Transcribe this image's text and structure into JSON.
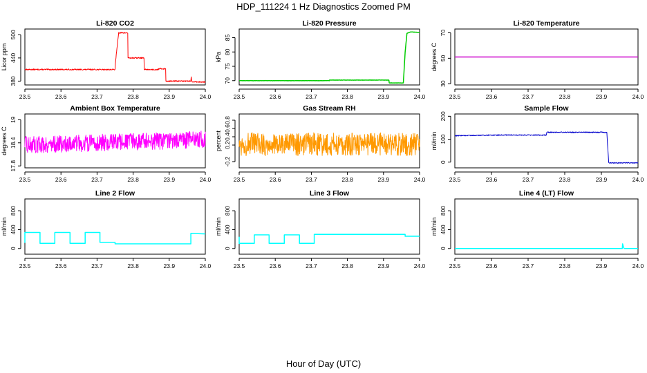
{
  "figure": {
    "title": "HDP_111224  1 Hz Diagnostics Zoomed PM",
    "xlabel": "Hour of Day (UTC)"
  },
  "chart_data": [
    {
      "type": "line",
      "title": "Li-820 CO2",
      "ylabel": "Licor ppm",
      "color": "#ff0000",
      "xlim": [
        23.5,
        24.0
      ],
      "x_ticks": [
        "23.5",
        "23.6",
        "23.7",
        "23.8",
        "23.9",
        "24.0"
      ],
      "ylim": [
        370,
        515
      ],
      "y_ticks": [
        380,
        440,
        500
      ],
      "noise": 1.5,
      "x": [
        23.5,
        23.75,
        23.751,
        23.76,
        23.76,
        23.785,
        23.785,
        23.83,
        23.83,
        23.87,
        23.87,
        23.89,
        23.89,
        23.96,
        23.96,
        23.962,
        23.962,
        24.0
      ],
      "values": [
        410,
        410,
        428,
        507,
        505,
        505,
        440,
        440,
        410,
        410,
        412,
        412,
        380,
        380,
        395,
        385,
        378,
        378
      ]
    },
    {
      "type": "line",
      "title": "Li-820 Pressure",
      "ylabel": "kPa",
      "color": "#00cc00",
      "xlim": [
        23.5,
        24.0
      ],
      "x_ticks": [
        "23.5",
        "23.6",
        "23.7",
        "23.8",
        "23.9",
        "24.0"
      ],
      "ylim": [
        68.5,
        88
      ],
      "y_ticks": [
        70,
        75,
        80,
        85
      ],
      "noise": 0.05,
      "x": [
        23.5,
        23.75,
        23.75,
        23.915,
        23.915,
        23.955,
        23.96,
        23.965,
        23.975,
        24.0
      ],
      "values": [
        70,
        70,
        70.2,
        70.2,
        69.2,
        69.2,
        80,
        86.5,
        87,
        86.8
      ]
    },
    {
      "type": "line",
      "title": "Li-820 Temperature",
      "ylabel": "degrees C",
      "color": "#cc00cc",
      "xlim": [
        23.5,
        24.0
      ],
      "x_ticks": [
        "23.5",
        "23.6",
        "23.7",
        "23.8",
        "23.9",
        "24.0"
      ],
      "ylim": [
        29,
        73
      ],
      "y_ticks": [
        30,
        50,
        70
      ],
      "noise": 0,
      "x": [
        23.5,
        24.0
      ],
      "values": [
        51,
        51
      ]
    },
    {
      "type": "line",
      "title": "Ambient Box Temperature",
      "ylabel": "degrees C",
      "color": "#ff00ff",
      "xlim": [
        23.5,
        24.0
      ],
      "x_ticks": [
        "23.5",
        "23.6",
        "23.7",
        "23.8",
        "23.9",
        "24.0"
      ],
      "ylim": [
        17.75,
        19.15
      ],
      "y_ticks": [
        17.8,
        18.4,
        19.0
      ],
      "noise": 0.22,
      "x": [
        23.5,
        23.7,
        23.9,
        24.0
      ],
      "values": [
        18.35,
        18.4,
        18.45,
        18.5
      ]
    },
    {
      "type": "line",
      "title": "Gas Stream RH",
      "ylabel": "percent",
      "color": "#ff9900",
      "xlim": [
        23.5,
        24.0
      ],
      "x_ticks": [
        "23.5",
        "23.6",
        "23.7",
        "23.8",
        "23.9",
        "24.0"
      ],
      "ylim": [
        -0.35,
        0.95
      ],
      "y_ticks": [
        -0.2,
        0.2,
        0.4,
        0.6,
        0.8
      ],
      "noise": 0.28,
      "x": [
        23.5,
        24.0
      ],
      "values": [
        0.22,
        0.22
      ]
    },
    {
      "type": "line",
      "title": "Sample Flow",
      "ylabel": "ml/min",
      "color": "#0000cc",
      "xlim": [
        23.5,
        24.0
      ],
      "x_ticks": [
        "23.5",
        "23.6",
        "23.7",
        "23.8",
        "23.9",
        "24.0"
      ],
      "ylim": [
        -25,
        210
      ],
      "y_ticks": [
        0,
        100,
        200
      ],
      "noise": 2,
      "x": [
        23.5,
        23.6,
        23.7,
        23.75,
        23.75,
        23.915,
        23.915,
        23.92,
        24.0
      ],
      "values": [
        115,
        118,
        118,
        118,
        130,
        130,
        125,
        -3,
        -3
      ]
    },
    {
      "type": "line",
      "title": "Line 2 Flow",
      "ylabel": "ml/min",
      "color": "#00ffff",
      "xlim": [
        23.5,
        24.0
      ],
      "x_ticks": [
        "23.5",
        "23.6",
        "23.7",
        "23.8",
        "23.9",
        "24.0"
      ],
      "ylim": [
        -120,
        1050
      ],
      "y_ticks": [
        0,
        400,
        800
      ],
      "noise": 0,
      "x": [
        23.5,
        23.5,
        23.542,
        23.542,
        23.583,
        23.583,
        23.625,
        23.625,
        23.667,
        23.667,
        23.708,
        23.708,
        23.75,
        23.75,
        23.96,
        23.96,
        24.0
      ],
      "values": [
        120,
        340,
        340,
        110,
        110,
        340,
        340,
        110,
        110,
        340,
        340,
        130,
        130,
        100,
        100,
        320,
        310
      ]
    },
    {
      "type": "line",
      "title": "Line 3 Flow",
      "ylabel": "ml/min",
      "color": "#00ffff",
      "xlim": [
        23.5,
        24.0
      ],
      "x_ticks": [
        "23.5",
        "23.6",
        "23.7",
        "23.8",
        "23.9",
        "24.0"
      ],
      "ylim": [
        -120,
        1050
      ],
      "y_ticks": [
        0,
        400,
        800
      ],
      "noise": 0,
      "x": [
        23.5,
        23.5,
        23.502,
        23.502,
        23.542,
        23.542,
        23.583,
        23.583,
        23.625,
        23.625,
        23.667,
        23.667,
        23.708,
        23.708,
        23.96,
        23.96,
        24.0
      ],
      "values": [
        250,
        110,
        110,
        110,
        110,
        290,
        290,
        110,
        110,
        290,
        290,
        110,
        110,
        300,
        300,
        260,
        260
      ]
    },
    {
      "type": "line",
      "title": "Line 4 (LT) Flow",
      "ylabel": "ml/min",
      "color": "#00ffff",
      "xlim": [
        23.5,
        24.0
      ],
      "x_ticks": [
        "23.5",
        "23.6",
        "23.7",
        "23.8",
        "23.9",
        "24.0"
      ],
      "ylim": [
        -120,
        1050
      ],
      "y_ticks": [
        0,
        400,
        800
      ],
      "noise": 0,
      "x": [
        23.5,
        23.957,
        23.958,
        23.96,
        23.962,
        24.0
      ],
      "values": [
        0,
        0,
        100,
        40,
        0,
        0
      ]
    }
  ]
}
